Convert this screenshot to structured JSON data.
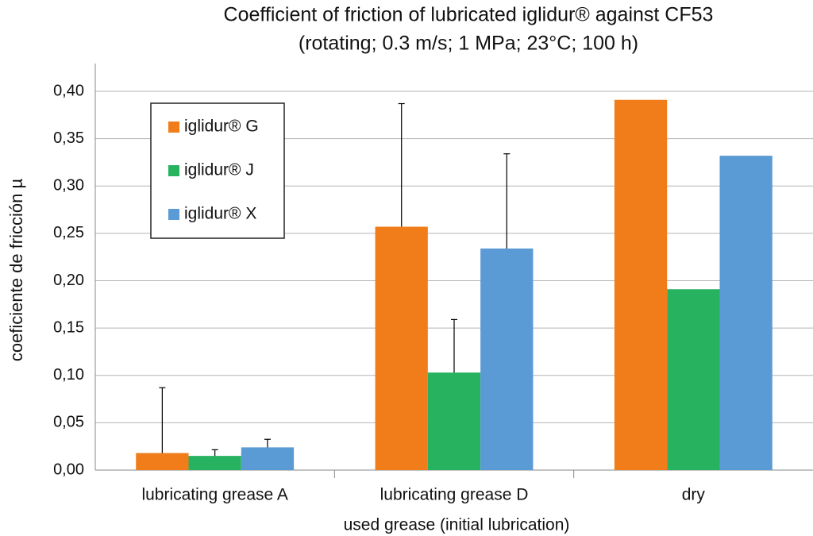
{
  "chart_data": {
    "type": "bar",
    "title": "Coefficient of friction of lubricated iglidur® against CF53",
    "subtitle": "(rotating; 0.3 m/s; 1 MPa; 23°C; 100 h)",
    "x_label": "used grease (initial lubrication)",
    "y_label": "coeficiente de fricción µ",
    "categories": [
      "lubricating grease A",
      "lubricating grease D",
      "dry"
    ],
    "series": [
      {
        "name": "iglidur® G",
        "color": "#f07d1a",
        "values": [
          0.018,
          0.257,
          0.391
        ],
        "errors": [
          0.069,
          0.13,
          null
        ]
      },
      {
        "name": "iglidur® J",
        "color": "#27b25f",
        "values": [
          0.015,
          0.103,
          0.191
        ],
        "errors": [
          0.0065,
          0.056,
          null
        ]
      },
      {
        "name": "iglidur® X",
        "color": "#5b9bd5",
        "values": [
          0.024,
          0.234,
          0.332
        ],
        "errors": [
          0.0085,
          0.1,
          null
        ]
      }
    ],
    "ylim": [
      0,
      0.4
    ],
    "yticks": [
      {
        "value": 0,
        "label": "0,00"
      },
      {
        "value": 0.05,
        "label": "0,05"
      },
      {
        "value": 0.1,
        "label": "0,10"
      },
      {
        "value": 0.15,
        "label": "0,15"
      },
      {
        "value": 0.2,
        "label": "0,20"
      },
      {
        "value": 0.25,
        "label": "0,25"
      },
      {
        "value": 0.3,
        "label": "0,30"
      },
      {
        "value": 0.35,
        "label": "0,35"
      },
      {
        "value": 0.4,
        "label": "0,40"
      }
    ],
    "grid": true
  }
}
